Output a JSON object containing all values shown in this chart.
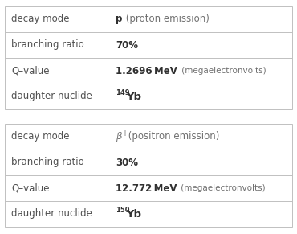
{
  "tables": [
    {
      "rows": [
        {
          "label": "decay mode",
          "type": "decay_p"
        },
        {
          "label": "branching ratio",
          "type": "plain",
          "value": "70%"
        },
        {
          "label": "Q–value",
          "type": "qvalue",
          "number": "1.2696 MeV",
          "unit": " (megaelectronvolts)"
        },
        {
          "label": "daughter nuclide",
          "type": "nuclide",
          "mass": "149",
          "element": "Yb"
        }
      ]
    },
    {
      "rows": [
        {
          "label": "decay mode",
          "type": "decay_beta"
        },
        {
          "label": "branching ratio",
          "type": "plain",
          "value": "30%"
        },
        {
          "label": "Q–value",
          "type": "qvalue",
          "number": "12.772 MeV",
          "unit": " (megaelectronvolts)"
        },
        {
          "label": "daughter nuclide",
          "type": "nuclide",
          "mass": "150",
          "element": "Yb"
        }
      ]
    }
  ],
  "bg": "#ffffff",
  "border": "#c0c0c0",
  "label_color": "#505050",
  "value_color": "#303030",
  "light_color": "#707070",
  "fig_w": 3.7,
  "fig_h": 2.91,
  "dpi": 100,
  "fs_label": 8.5,
  "fs_value": 8.5,
  "fs_unit": 7.5,
  "fs_super": 6.0,
  "fs_elem": 9.5
}
